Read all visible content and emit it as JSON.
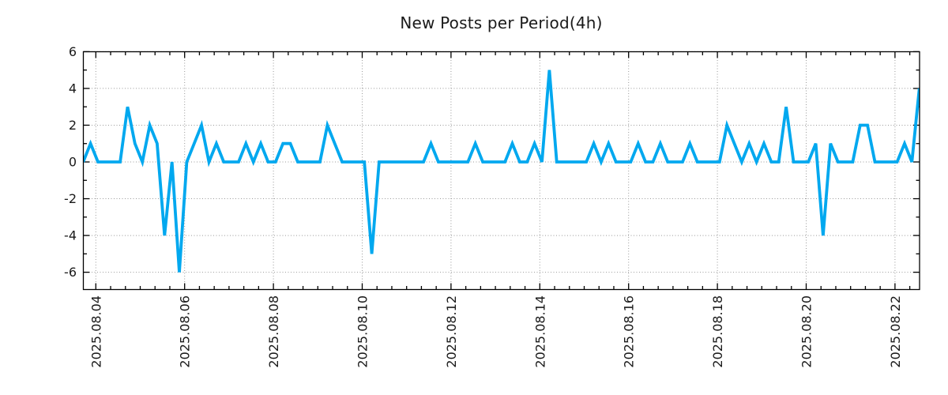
{
  "chart_data": {
    "type": "line",
    "title": "New Posts per Period(4h)",
    "x_start": "2025-08-03 16:00",
    "x_step_hours": 4,
    "values": [
      0,
      1,
      0,
      0,
      0,
      0,
      3,
      1,
      0,
      2,
      1,
      -4,
      0,
      -6,
      0,
      1,
      2,
      0,
      1,
      0,
      0,
      0,
      1,
      0,
      1,
      0,
      0,
      1,
      1,
      0,
      0,
      0,
      0,
      2,
      1,
      0,
      0,
      0,
      0,
      -5,
      0,
      0,
      0,
      0,
      0,
      0,
      0,
      1,
      0,
      0,
      0,
      0,
      0,
      1,
      0,
      0,
      0,
      0,
      1,
      0,
      0,
      1,
      0,
      5,
      0,
      0,
      0,
      0,
      0,
      1,
      0,
      1,
      0,
      0,
      0,
      1,
      0,
      0,
      1,
      0,
      0,
      0,
      1,
      0,
      0,
      0,
      0,
      2,
      1,
      0,
      1,
      0,
      1,
      0,
      0,
      3,
      0,
      0,
      0,
      1,
      -4,
      1,
      0,
      0,
      0,
      2,
      2,
      0,
      0,
      0,
      0,
      1,
      0,
      4
    ],
    "x_tick_labels": [
      "2025.08.04",
      "2025.08.06",
      "2025.08.08",
      "2025.08.10",
      "2025.08.12",
      "2025.08.14",
      "2025.08.16",
      "2025.08.18",
      "2025.08.20",
      "2025.08.22"
    ],
    "x_tick_interval_days": 2,
    "x_minor_tick_hours": 8,
    "y_ticks": [
      6,
      4,
      2,
      0,
      -2,
      -4,
      -6
    ],
    "y_tick_labels": [
      "6",
      "4",
      "2",
      "0",
      "-2",
      "-4",
      "-6"
    ],
    "y_minor_tick_step": 1,
    "ylim": [
      -6.94,
      6
    ],
    "grid": true,
    "grid_style": "dotted",
    "legend": false,
    "line_color": "#00a8ef",
    "axis_color": "#000000",
    "grid_color": "#999999",
    "text_color": "#1a1a1a"
  }
}
